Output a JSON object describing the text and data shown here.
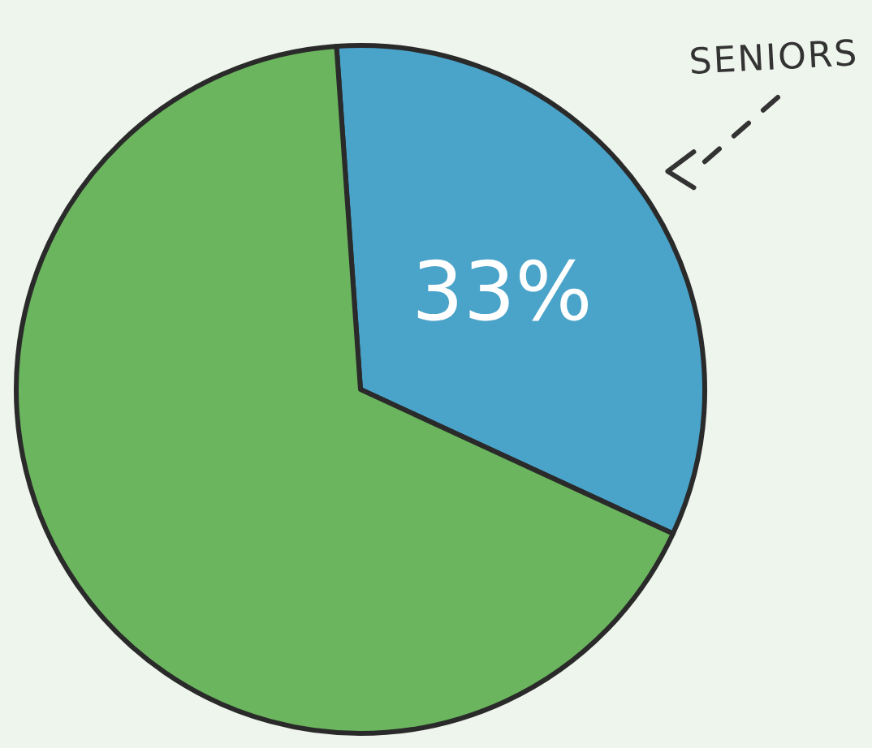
{
  "chart_data": {
    "type": "pie",
    "categories": [
      "SENIORS",
      null
    ],
    "values": [
      33,
      67
    ],
    "colors": [
      "#4aa3c9",
      "#6bb55e"
    ],
    "value_labels": [
      "33%",
      null
    ]
  }
}
